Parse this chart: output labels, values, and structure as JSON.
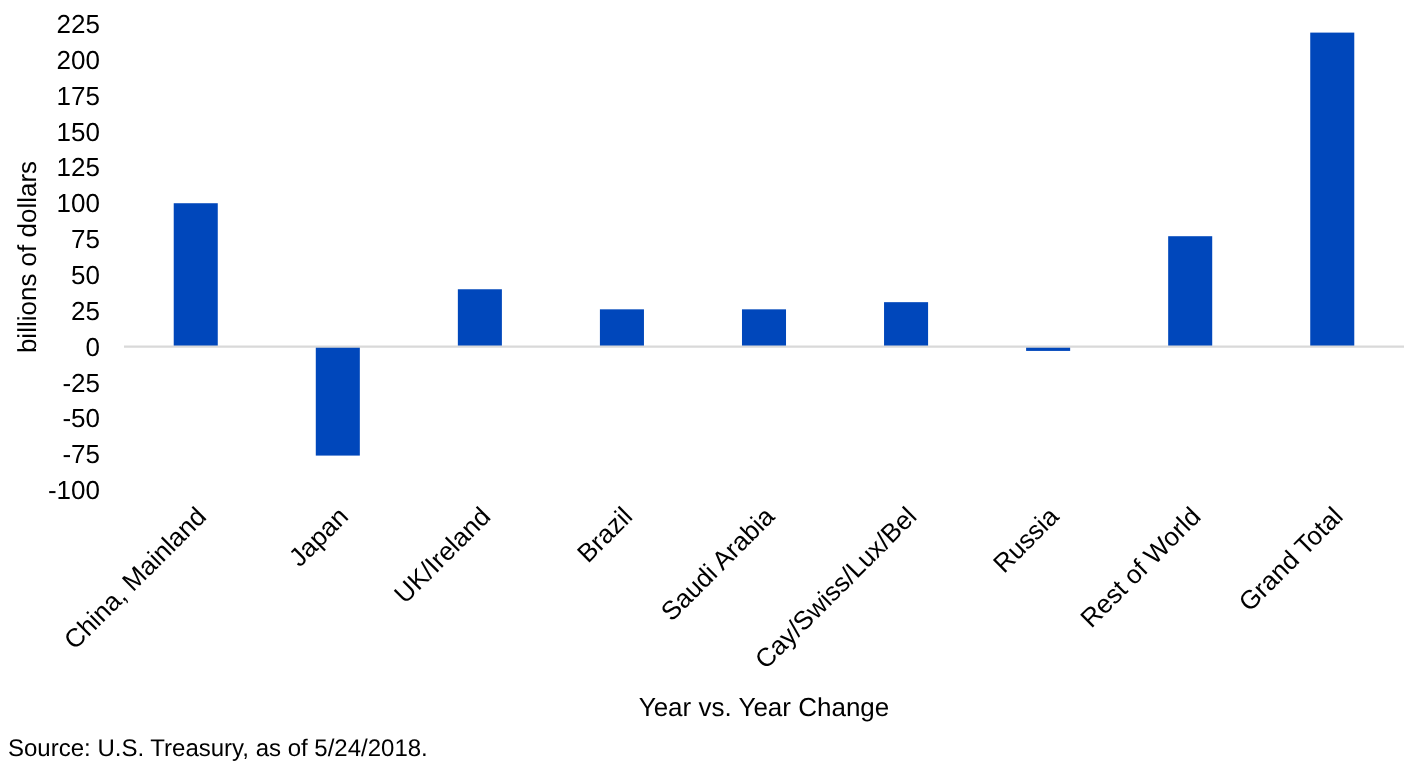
{
  "chart_data": {
    "type": "bar",
    "xlabel": "Year vs. Year Change",
    "ylabel": "billions of dollars",
    "categories": [
      "China, Mainland",
      "Japan",
      "UK/Ireland",
      "Brazil",
      "Saudi Arabia",
      "Cay/Swiss/Lux/Bel",
      "Russia",
      "Rest of World",
      "Grand Total"
    ],
    "values": [
      100,
      -76,
      40,
      26,
      26,
      31,
      -3,
      77,
      219
    ],
    "color": "#0047bb",
    "ylim": [
      -100,
      225
    ],
    "yticks": [
      -100,
      -75,
      -50,
      -25,
      0,
      25,
      50,
      75,
      100,
      125,
      150,
      175,
      200,
      225
    ],
    "annotations": [
      "Source: U.S. Treasury, as of 5/24/2018."
    ]
  }
}
